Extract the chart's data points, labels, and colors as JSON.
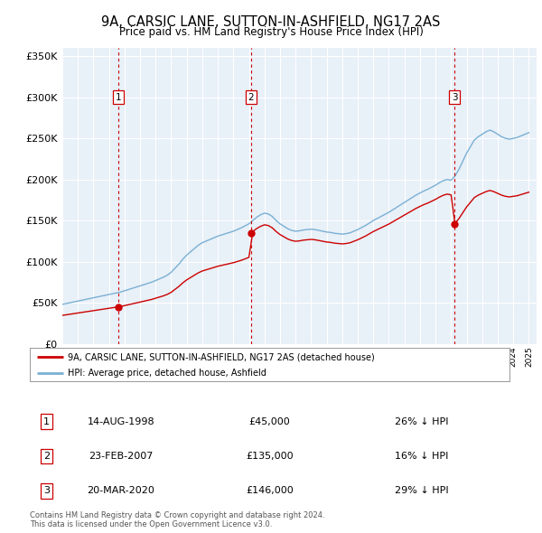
{
  "title": "9A, CARSIC LANE, SUTTON-IN-ASHFIELD, NG17 2AS",
  "subtitle": "Price paid vs. HM Land Registry's House Price Index (HPI)",
  "plot_bg_color": "#e8f0f8",
  "sale_color": "#cc0000",
  "hpi_color": "#7ab0d4",
  "ylim": [
    0,
    360000
  ],
  "yticks": [
    0,
    50000,
    100000,
    150000,
    200000,
    250000,
    300000,
    350000
  ],
  "sales": [
    {
      "date_label": "14-AUG-1998",
      "x": 1998.62,
      "price": 45000,
      "label": "1",
      "pct": "26% ↓ HPI"
    },
    {
      "date_label": "23-FEB-2007",
      "x": 2007.14,
      "price": 135000,
      "label": "2",
      "pct": "16% ↓ HPI"
    },
    {
      "date_label": "20-MAR-2020",
      "x": 2020.22,
      "price": 146000,
      "label": "3",
      "pct": "29% ↓ HPI"
    }
  ],
  "legend_line1": "9A, CARSIC LANE, SUTTON-IN-ASHFIELD, NG17 2AS (detached house)",
  "legend_line2": "HPI: Average price, detached house, Ashfield",
  "footer": "Contains HM Land Registry data © Crown copyright and database right 2024.\nThis data is licensed under the Open Government Licence v3.0.",
  "xmin": 1995.0,
  "xmax": 2025.5,
  "hpi_years": [
    1995.0,
    1995.25,
    1995.5,
    1995.75,
    1996.0,
    1996.25,
    1996.5,
    1996.75,
    1997.0,
    1997.25,
    1997.5,
    1997.75,
    1998.0,
    1998.25,
    1998.5,
    1998.75,
    1999.0,
    1999.25,
    1999.5,
    1999.75,
    2000.0,
    2000.25,
    2000.5,
    2000.75,
    2001.0,
    2001.25,
    2001.5,
    2001.75,
    2002.0,
    2002.25,
    2002.5,
    2002.75,
    2003.0,
    2003.25,
    2003.5,
    2003.75,
    2004.0,
    2004.25,
    2004.5,
    2004.75,
    2005.0,
    2005.25,
    2005.5,
    2005.75,
    2006.0,
    2006.25,
    2006.5,
    2006.75,
    2007.0,
    2007.25,
    2007.5,
    2007.75,
    2008.0,
    2008.25,
    2008.5,
    2008.75,
    2009.0,
    2009.25,
    2009.5,
    2009.75,
    2010.0,
    2010.25,
    2010.5,
    2010.75,
    2011.0,
    2011.25,
    2011.5,
    2011.75,
    2012.0,
    2012.25,
    2012.5,
    2012.75,
    2013.0,
    2013.25,
    2013.5,
    2013.75,
    2014.0,
    2014.25,
    2014.5,
    2014.75,
    2015.0,
    2015.25,
    2015.5,
    2015.75,
    2016.0,
    2016.25,
    2016.5,
    2016.75,
    2017.0,
    2017.25,
    2017.5,
    2017.75,
    2018.0,
    2018.25,
    2018.5,
    2018.75,
    2019.0,
    2019.25,
    2019.5,
    2019.75,
    2020.0,
    2020.25,
    2020.5,
    2020.75,
    2021.0,
    2021.25,
    2021.5,
    2021.75,
    2022.0,
    2022.25,
    2022.5,
    2022.75,
    2023.0,
    2023.25,
    2023.5,
    2023.75,
    2024.0,
    2024.25,
    2024.5,
    2024.75,
    2025.0
  ],
  "hpi_values": [
    48000,
    49000,
    50000,
    51000,
    52000,
    53000,
    54000,
    55000,
    56000,
    57000,
    58000,
    59000,
    60000,
    61000,
    62000,
    63000,
    64500,
    66000,
    67500,
    69000,
    70500,
    72000,
    73500,
    75000,
    77000,
    79000,
    81000,
    83500,
    87000,
    92000,
    97000,
    103000,
    108000,
    112000,
    116000,
    120000,
    123000,
    125000,
    127000,
    129000,
    131000,
    132500,
    134000,
    135500,
    137000,
    139000,
    141000,
    143500,
    146000,
    150000,
    154000,
    157000,
    159000,
    158000,
    155000,
    150000,
    146000,
    143000,
    140000,
    138000,
    137000,
    137500,
    138500,
    139000,
    139500,
    139000,
    138000,
    137000,
    136000,
    135500,
    134500,
    134000,
    133500,
    134000,
    135000,
    137000,
    139000,
    141500,
    144000,
    147000,
    150000,
    152500,
    155000,
    157500,
    160000,
    163000,
    166000,
    169000,
    172000,
    175000,
    178000,
    181000,
    183500,
    186000,
    188000,
    190500,
    193000,
    196000,
    198500,
    200000,
    199000,
    204000,
    212000,
    222000,
    232000,
    240000,
    248000,
    252000,
    255000,
    258000,
    260000,
    258000,
    255000,
    252000,
    250000,
    249000,
    250000,
    251000,
    253000,
    255000,
    257000
  ]
}
